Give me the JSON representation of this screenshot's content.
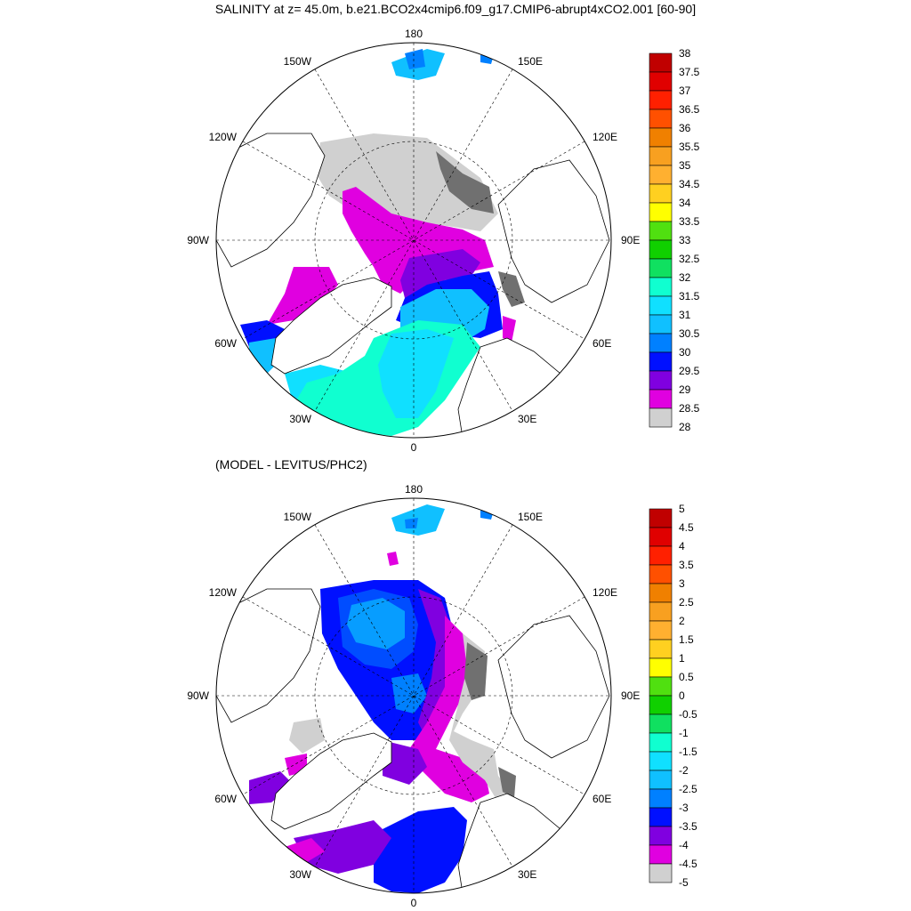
{
  "title": "SALINITY at z=  45.0m, b.e21.BCO2x4cmip6.f09_g17.CMIP6-abrupt4xCO2.001 [60-90]",
  "subtitle": "(MODEL - LEVITUS/PHC2)",
  "longitude_labels": {
    "top": "180",
    "bottom": "0",
    "left": "90W",
    "right": "90E",
    "upper_left_1": "150W",
    "upper_left_2": "120W",
    "upper_right_1": "150E",
    "upper_right_2": "120E",
    "lower_left_1": "60W",
    "lower_left_2": "30W",
    "lower_right_1": "60E",
    "lower_right_2": "30E"
  },
  "colorbar_top": {
    "labels": [
      "38",
      "37.5",
      "37",
      "36.5",
      "36",
      "35.5",
      "35",
      "34.5",
      "34",
      "33.5",
      "33",
      "32.5",
      "32",
      "31.5",
      "31",
      "30.5",
      "30",
      "29.5",
      "29",
      "28.5",
      "28"
    ],
    "colors": [
      "#c00000",
      "#e00000",
      "#ff2000",
      "#ff5000",
      "#f08000",
      "#f8a020",
      "#ffb030",
      "#ffd020",
      "#ffff00",
      "#50e010",
      "#10d000",
      "#10e060",
      "#10ffd0",
      "#10e0ff",
      "#10c0ff",
      "#0080ff",
      "#0010ff",
      "#8000e0",
      "#e000e0",
      "#d0d0d0",
      "#707070"
    ]
  },
  "colorbar_bottom": {
    "labels": [
      "5",
      "4.5",
      "4",
      "3.5",
      "3",
      "2.5",
      "2",
      "1.5",
      "1",
      "0.5",
      "0",
      "-0.5",
      "-1",
      "-1.5",
      "-2",
      "-2.5",
      "-3",
      "-3.5",
      "-4",
      "-4.5",
      "-5"
    ],
    "colors": [
      "#c00000",
      "#e00000",
      "#ff2000",
      "#ff5000",
      "#f08000",
      "#f8a020",
      "#ffb030",
      "#ffd020",
      "#ffff00",
      "#50e010",
      "#10d000",
      "#10e060",
      "#10ffd0",
      "#10e0ff",
      "#10c0ff",
      "#0080ff",
      "#0010ff",
      "#8000e0",
      "#e000e0",
      "#d0d0d0",
      "#707070"
    ]
  }
}
